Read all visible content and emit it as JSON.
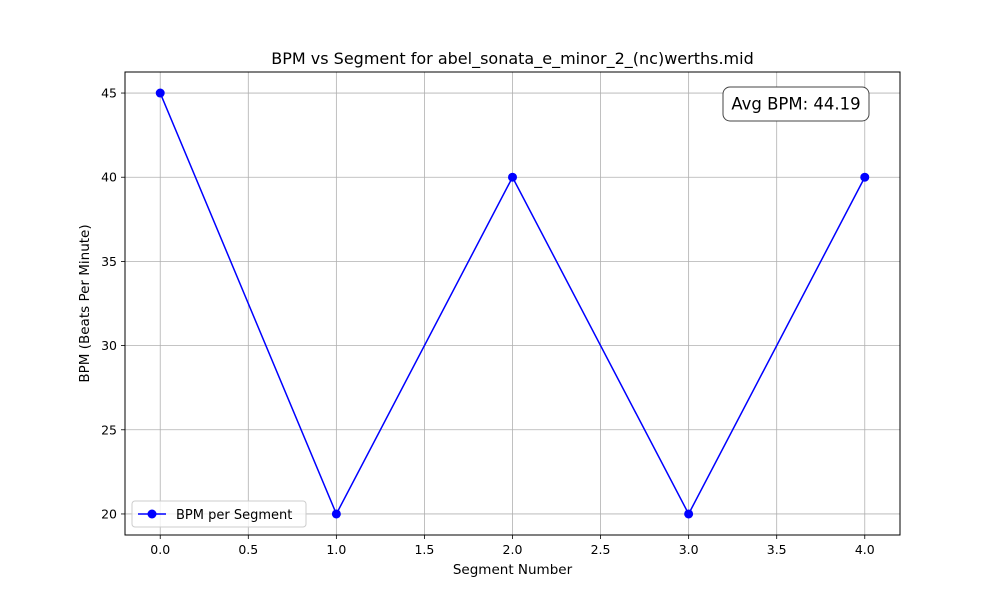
{
  "chart_data": {
    "type": "line",
    "title": "BPM vs Segment for abel_sonata_e_minor_2_(nc)werths.mid",
    "xlabel": "Segment Number",
    "ylabel": "BPM (Beats Per Minute)",
    "x": [
      0,
      1,
      2,
      3,
      4
    ],
    "series": [
      {
        "name": "BPM per Segment",
        "values": [
          45,
          20,
          40,
          20,
          40
        ],
        "color": "#0000ff",
        "marker": "circle"
      }
    ],
    "xlim": [
      -0.2,
      4.2
    ],
    "ylim": [
      18.75,
      46.25
    ],
    "xticks": [
      0.0,
      0.5,
      1.0,
      1.5,
      2.0,
      2.5,
      3.0,
      3.5,
      4.0
    ],
    "xtick_labels": [
      "0.0",
      "0.5",
      "1.0",
      "1.5",
      "2.0",
      "2.5",
      "3.0",
      "3.5",
      "4.0"
    ],
    "yticks": [
      20,
      25,
      30,
      35,
      40,
      45
    ],
    "ytick_labels": [
      "20",
      "25",
      "30",
      "35",
      "40",
      "45"
    ],
    "grid": true,
    "legend_position": "lower-left",
    "annotation": {
      "text": "Avg BPM: 44.19",
      "position": "top-right"
    }
  }
}
